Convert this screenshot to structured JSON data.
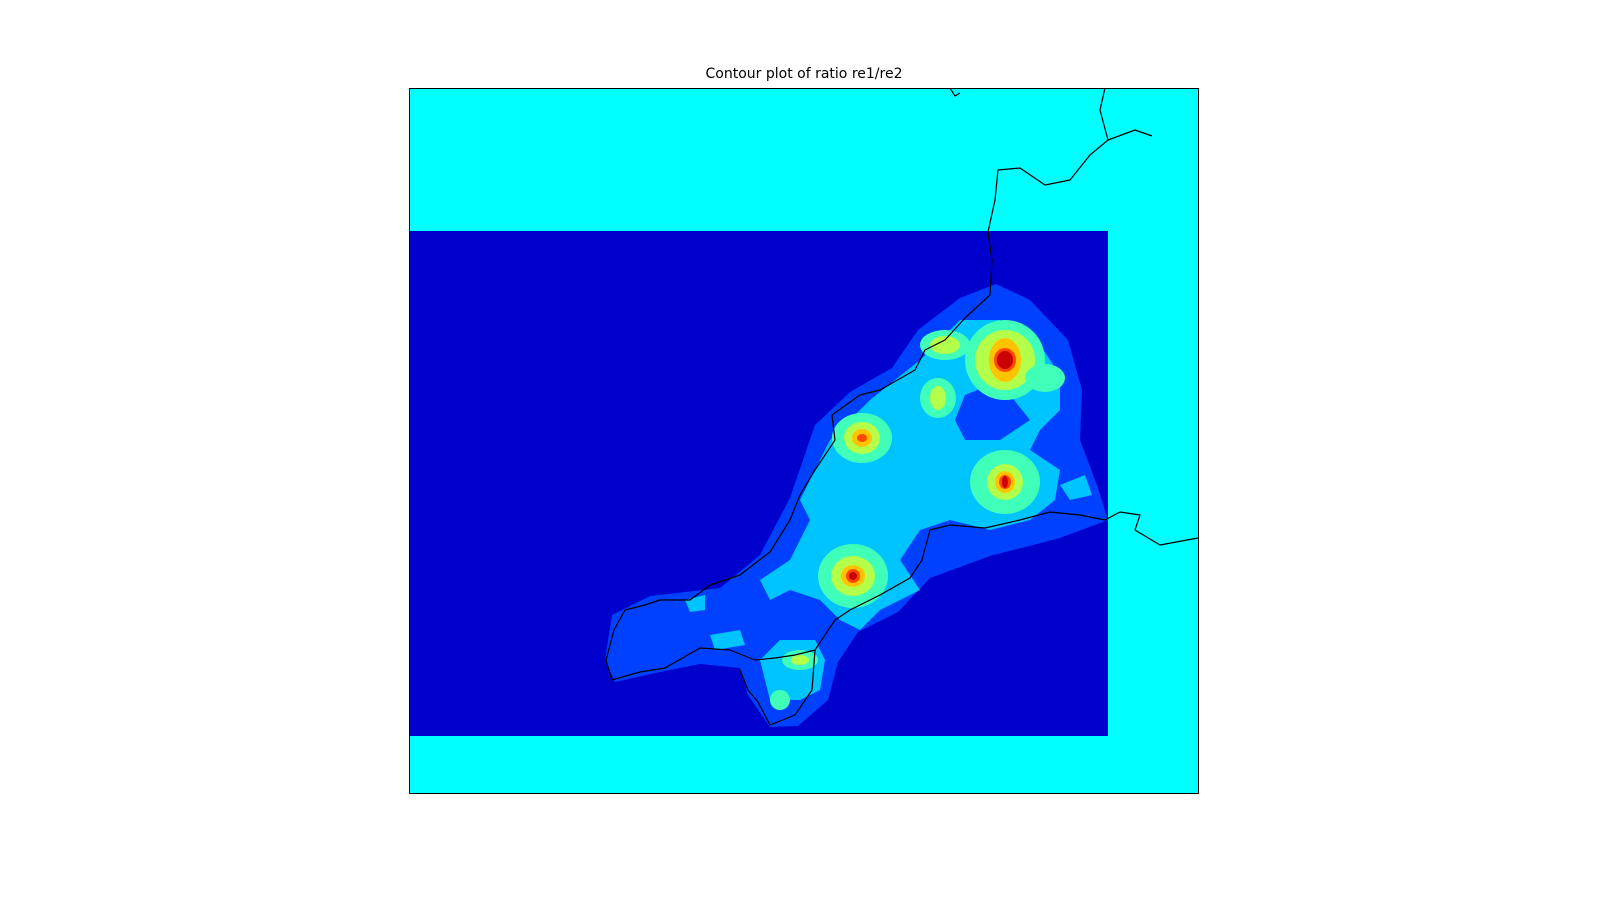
{
  "chart_data": {
    "type": "contour",
    "title": "Contour plot of ratio re1/re2",
    "xlabel": "",
    "ylabel": "",
    "colormap": "jet",
    "masked_color": "#00ffff",
    "level_colors": [
      "#0000cc",
      "#0040ff",
      "#00c4ff",
      "#40ffb8",
      "#b4ff4a",
      "#ffc400",
      "#ff4800",
      "#cc0000"
    ],
    "basemap": "coastlines",
    "grid": false,
    "legend": "none"
  }
}
